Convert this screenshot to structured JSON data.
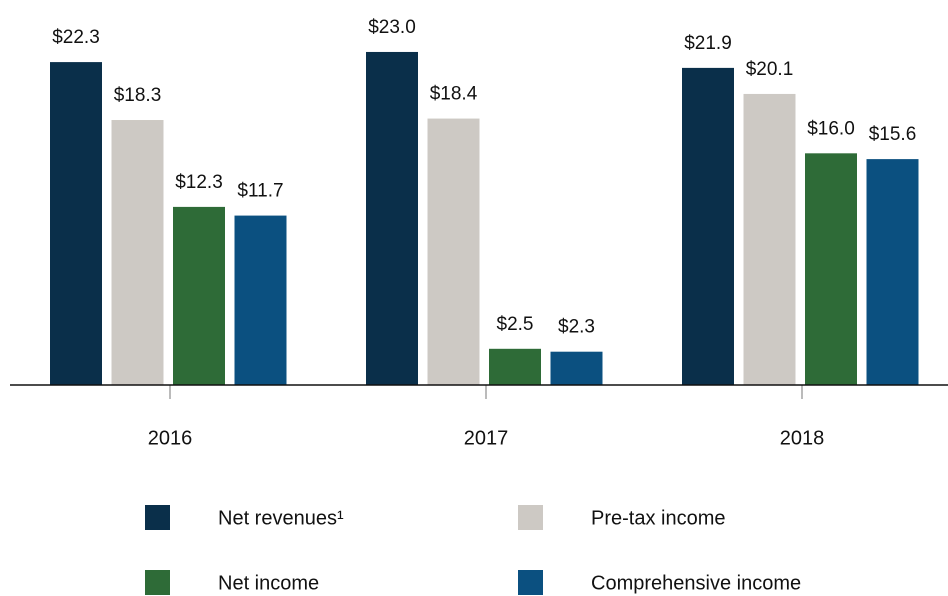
{
  "chart_data": {
    "type": "bar",
    "categories": [
      "2016",
      "2017",
      "2018"
    ],
    "series": [
      {
        "name": "Net revenues¹",
        "color": "#0a2f4a",
        "values": [
          22.3,
          23.0,
          21.9
        ],
        "value_labels": [
          "$22.3",
          "$23.0",
          "$21.9"
        ]
      },
      {
        "name": "Pre-tax income",
        "color": "#cdc9c4",
        "values": [
          18.3,
          18.4,
          20.1
        ],
        "value_labels": [
          "$18.3",
          "$18.4",
          "$20.1"
        ]
      },
      {
        "name": "Net income",
        "color": "#2e6b37",
        "values": [
          12.3,
          2.5,
          16.0
        ],
        "value_labels": [
          "$12.3",
          "$2.5",
          "$16.0"
        ]
      },
      {
        "name": "Comprehensive income",
        "color": "#0b5080",
        "values": [
          11.7,
          2.3,
          15.6
        ],
        "value_labels": [
          "$11.7",
          "$2.3",
          "$15.6"
        ]
      }
    ]
  }
}
